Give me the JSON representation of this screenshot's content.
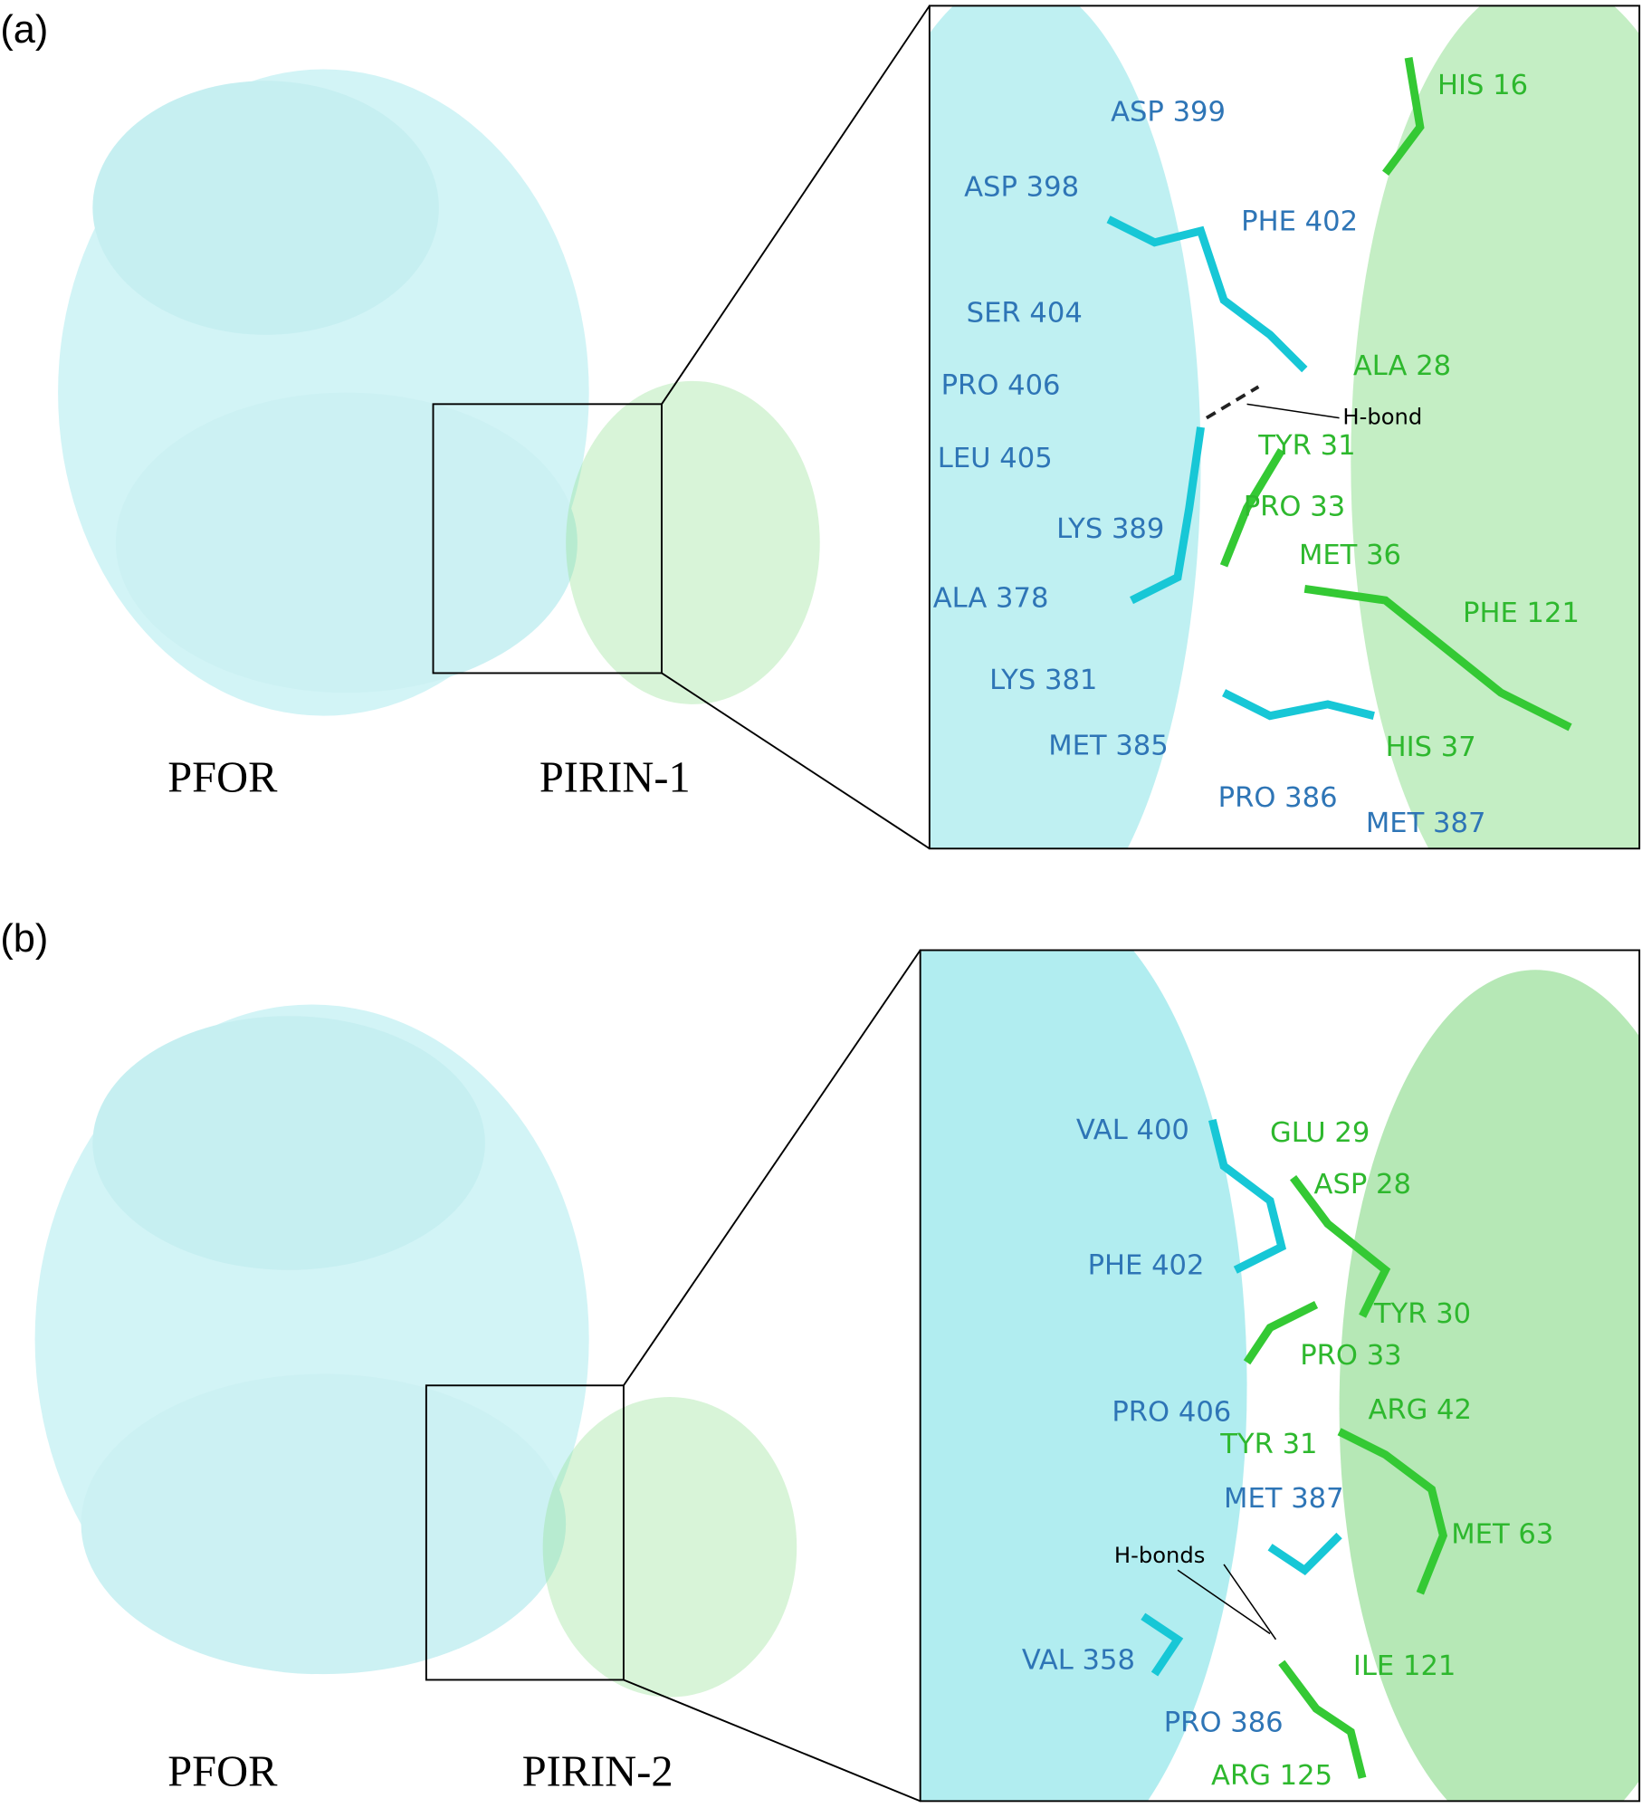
{
  "panels": [
    {
      "label": "(a)",
      "protein_labels": [
        "PFOR",
        "PIRIN-1"
      ],
      "blue_residues": [
        "ASP 399",
        "ASP 398",
        "PHE 402",
        "SER 404",
        "PRO 406",
        "LEU 405",
        "LYS 389",
        "ALA 378",
        "LYS 381",
        "MET 385",
        "PRO 386",
        "MET 387"
      ],
      "green_residues": [
        "HIS 16",
        "ALA 28",
        "TYR 31",
        "PRO 33",
        "MET 36",
        "PHE 121",
        "HIS 37"
      ],
      "annotation": "H-bond"
    },
    {
      "label": "(b)",
      "protein_labels": [
        "PFOR",
        "PIRIN-2"
      ],
      "blue_residues": [
        "VAL 400",
        "PHE 402",
        "PRO 406",
        "MET 387",
        "VAL 358",
        "PRO 386"
      ],
      "green_residues": [
        "GLU 29",
        "ASP 28",
        "TYR 30",
        "PRO 33",
        "ARG 42",
        "TYR 31",
        "MET 63",
        "ILE 121",
        "ARG 125"
      ],
      "annotation": "H-bonds"
    }
  ]
}
